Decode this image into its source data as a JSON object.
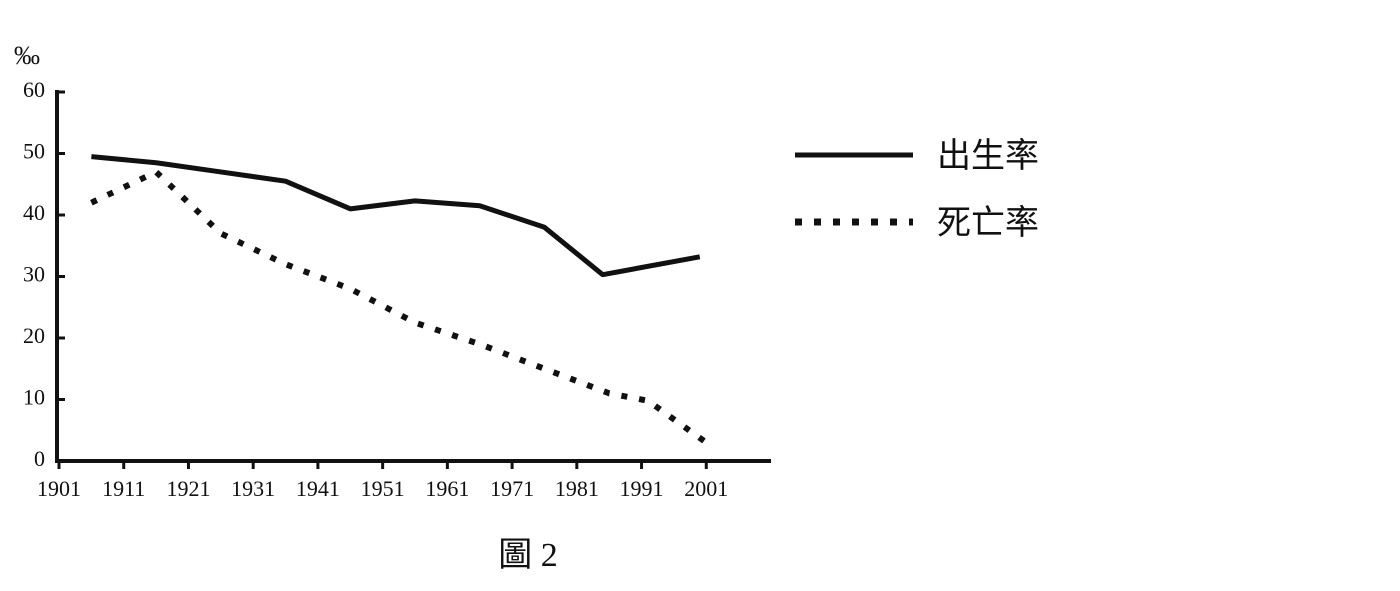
{
  "chart_data": {
    "type": "line",
    "caption": "圖 2",
    "y_label": "‰",
    "xlim": [
      1901,
      2011
    ],
    "xticks": [
      1901,
      1911,
      1921,
      1931,
      1941,
      1951,
      1961,
      1971,
      1981,
      1991,
      2001
    ],
    "ylim": [
      0,
      60
    ],
    "yticks": [
      0,
      10,
      20,
      30,
      40,
      50,
      60
    ],
    "series": [
      {
        "name": "出生率",
        "color": "#111111",
        "style": "solid",
        "x": [
          1906,
          1916,
          1926,
          1936,
          1946,
          1956,
          1966,
          1976,
          1985,
          2000
        ],
        "values": [
          49.5,
          48.5,
          47,
          45.5,
          41,
          42.3,
          41.5,
          38,
          30.3,
          33.2
        ]
      },
      {
        "name": "死亡率",
        "color": "#111111",
        "style": "dotted",
        "x": [
          1906,
          1916,
          1926,
          1936,
          1946,
          1956,
          1966,
          1976,
          1986,
          1992,
          2001
        ],
        "values": [
          42,
          47,
          37,
          32,
          28,
          22.5,
          19,
          15,
          11,
          9.8,
          3
        ]
      }
    ],
    "legend": "right"
  }
}
